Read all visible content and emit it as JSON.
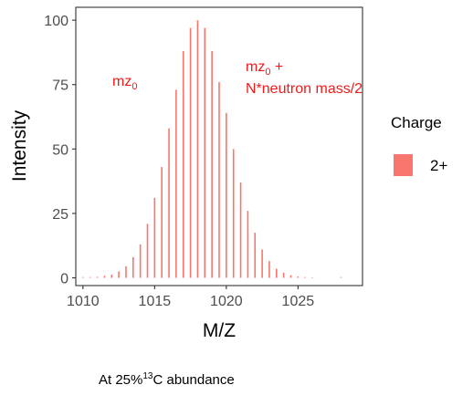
{
  "chart_data": {
    "type": "bar",
    "xlabel": "M/Z",
    "ylabel": "Intensity",
    "xlim": [
      1009.5,
      1029.5
    ],
    "ylim": [
      -3,
      105
    ],
    "x_ticks": [
      "1010",
      "1015",
      "1020",
      "1025"
    ],
    "y_ticks": [
      "0",
      "25",
      "50",
      "75",
      "100"
    ],
    "grid": false,
    "legend": {
      "title": "Charge",
      "position": "right",
      "entries": [
        {
          "label": "2+",
          "color": "#f8766d"
        }
      ]
    },
    "series": [
      {
        "name": "2+",
        "color": "#f8766d",
        "x": [
          1010.0,
          1010.5,
          1011.0,
          1011.5,
          1012.0,
          1012.5,
          1013.0,
          1013.5,
          1014.0,
          1014.5,
          1015.0,
          1015.5,
          1016.0,
          1016.5,
          1017.0,
          1017.5,
          1018.0,
          1018.5,
          1019.0,
          1019.5,
          1020.0,
          1020.5,
          1021.0,
          1021.5,
          1022.0,
          1022.5,
          1023.0,
          1023.5,
          1024.0,
          1024.5,
          1025.0,
          1025.5,
          1026.0,
          1028.0
        ],
        "values": [
          0.3,
          0.3,
          0.4,
          0.8,
          1.2,
          2.5,
          4.5,
          8.0,
          13.0,
          21.0,
          31.0,
          43.0,
          58.0,
          73.0,
          88.0,
          97.0,
          100.0,
          97.0,
          88.0,
          76.0,
          64.0,
          50.0,
          37.0,
          26.0,
          17.5,
          11.0,
          6.5,
          3.5,
          2.0,
          1.0,
          0.5,
          0.3,
          0.2,
          0.3
        ]
      }
    ],
    "annotations": [
      {
        "text": "mz",
        "subscript": "0"
      },
      {
        "line1": "mz",
        "line1_subscript": "0",
        "line1_suffix": " +",
        "line2": "N*neutron mass/2"
      }
    ]
  },
  "caption": {
    "prefix": "At 25%",
    "superscript": "13",
    "suffix": "C  abundance"
  }
}
